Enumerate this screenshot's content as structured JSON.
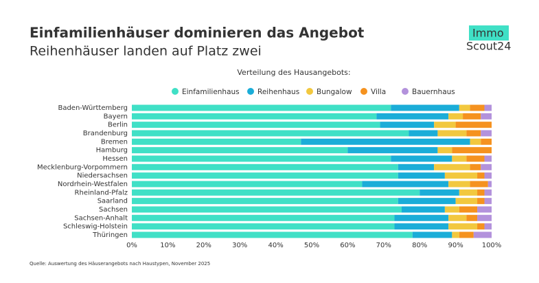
{
  "chart_data": {
    "type": "stacked-bar-horizontal",
    "title": "Einfamilienhäuser dominieren das Angebot",
    "subtitle": "Reihenhäuser landen auf Platz zwei",
    "legend_title": "Verteilung des Hausangebots:",
    "source": "Quelle: Auswertung des Häuserangebots nach Haustypen, November 2025",
    "categories": [
      "Baden-Württemberg",
      "Bayern",
      "Berlin",
      "Brandenburg",
      "Bremen",
      "Hamburg",
      "Hessen",
      "Mecklenburg-Vorpommern",
      "Niedersachsen",
      "Nordrhein-Westfalen",
      "Rheinland-Pfalz",
      "Saarland",
      "Sachsen",
      "Sachsen-Anhalt",
      "Schleswig-Holstein",
      "Thüringen"
    ],
    "series": [
      {
        "name": "Einfamilienhaus",
        "color": "#40e0c6",
        "values": [
          72,
          68,
          69,
          77,
          47,
          60,
          72,
          74,
          74,
          64,
          80,
          74,
          75,
          73,
          73,
          78
        ]
      },
      {
        "name": "Reihenhaus",
        "color": "#1badd8",
        "values": [
          19,
          20,
          15,
          8,
          47,
          25,
          17,
          10,
          13,
          24,
          11,
          16,
          12,
          15,
          15,
          11
        ]
      },
      {
        "name": "Bungalow",
        "color": "#f2c83f",
        "values": [
          3,
          4,
          6,
          8,
          3,
          4,
          4,
          10,
          9,
          6,
          5,
          6,
          4,
          5,
          8,
          2
        ]
      },
      {
        "name": "Villa",
        "color": "#f5921f",
        "values": [
          4,
          5,
          10,
          4,
          3,
          11,
          5,
          3,
          2,
          5,
          2,
          2,
          5,
          3,
          2,
          4
        ]
      },
      {
        "name": "Bauernhaus",
        "color": "#b392dc",
        "values": [
          2,
          3,
          0,
          3,
          0,
          0,
          2,
          3,
          2,
          1,
          2,
          2,
          4,
          4,
          2,
          5
        ]
      }
    ],
    "xlim": [
      0,
      100
    ],
    "xticks": [
      {
        "value": 0,
        "label": "0%"
      },
      {
        "value": 10,
        "label": "10%"
      },
      {
        "value": 20,
        "label": "20%"
      },
      {
        "value": 30,
        "label": "30%"
      },
      {
        "value": 40,
        "label": "40%"
      },
      {
        "value": 50,
        "label": "50%"
      },
      {
        "value": 60,
        "label": "60%"
      },
      {
        "value": 70,
        "label": "70%"
      },
      {
        "value": 80,
        "label": "80%"
      },
      {
        "value": 90,
        "label": "90%"
      },
      {
        "value": 100,
        "label": "100%"
      }
    ],
    "grid": false
  },
  "logo": {
    "line1": "Immo",
    "line2": "Scout24"
  }
}
